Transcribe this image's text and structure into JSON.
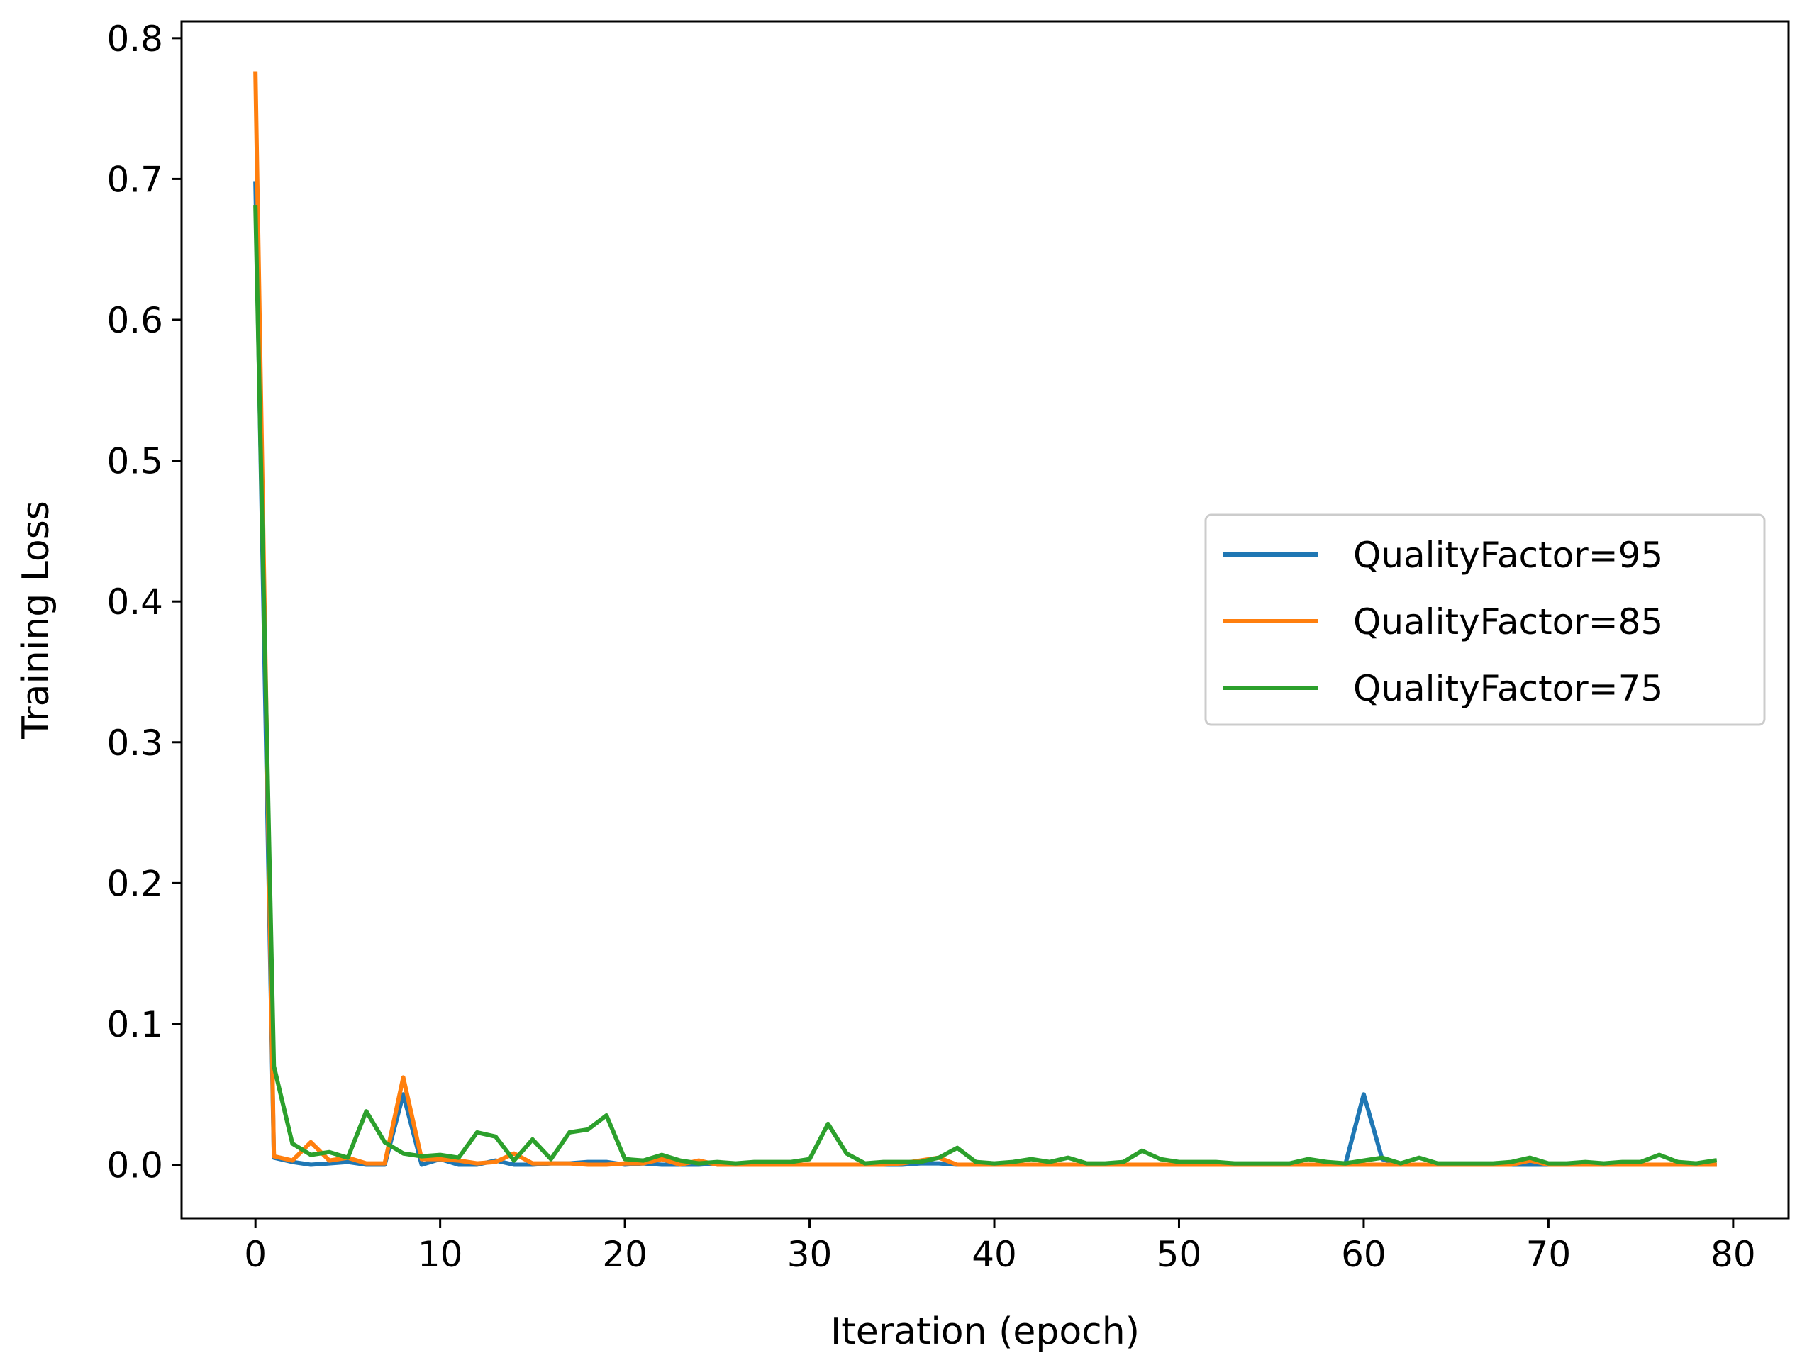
{
  "chart_data": {
    "type": "line",
    "title": "",
    "xlabel": "Iteration (epoch)",
    "ylabel": "Training Loss",
    "xlim": [
      -4,
      83
    ],
    "ylim": [
      -0.038,
      0.812
    ],
    "xticks": [
      0,
      10,
      20,
      30,
      40,
      50,
      60,
      70,
      80
    ],
    "yticks": [
      0.0,
      0.1,
      0.2,
      0.3,
      0.4,
      0.5,
      0.6,
      0.7,
      0.8
    ],
    "xtick_labels": [
      "0",
      "10",
      "20",
      "30",
      "40",
      "50",
      "60",
      "70",
      "80"
    ],
    "ytick_labels": [
      "0.0",
      "0.1",
      "0.2",
      "0.3",
      "0.4",
      "0.5",
      "0.6",
      "0.7",
      "0.8"
    ],
    "grid": false,
    "legend_position": "center-right",
    "x": [
      0,
      1,
      2,
      3,
      4,
      5,
      6,
      7,
      8,
      9,
      10,
      11,
      12,
      13,
      14,
      15,
      16,
      17,
      18,
      19,
      20,
      21,
      22,
      23,
      24,
      25,
      26,
      27,
      28,
      29,
      30,
      31,
      32,
      33,
      34,
      35,
      36,
      37,
      38,
      39,
      40,
      41,
      42,
      43,
      44,
      45,
      46,
      47,
      48,
      49,
      50,
      51,
      52,
      53,
      54,
      55,
      56,
      57,
      58,
      59,
      60,
      61,
      62,
      63,
      64,
      65,
      66,
      67,
      68,
      69,
      70,
      71,
      72,
      73,
      74,
      75,
      76,
      77,
      78,
      79
    ],
    "series": [
      {
        "name": "QualityFactor=95",
        "color": "#1f77b4",
        "values": [
          0.697,
          0.005,
          0.002,
          0.0,
          0.001,
          0.002,
          0.0,
          0.0,
          0.05,
          0.0,
          0.004,
          0.0,
          0.0,
          0.003,
          0.0,
          0.0,
          0.001,
          0.001,
          0.002,
          0.002,
          0.0,
          0.001,
          0.0,
          0.0,
          0.0,
          0.001,
          0.0,
          0.0,
          0.0,
          0.0,
          0.0,
          0.0,
          0.0,
          0.0,
          0.0,
          0.0,
          0.001,
          0.001,
          0.0,
          0.0,
          0.0,
          0.0,
          0.0,
          0.0,
          0.0,
          0.0,
          0.0,
          0.0,
          0.0,
          0.0,
          0.0,
          0.0,
          0.0,
          0.0,
          0.0,
          0.0,
          0.0,
          0.0,
          0.0,
          0.0,
          0.05,
          0.004,
          0.0,
          0.0,
          0.0,
          0.0,
          0.0,
          0.0,
          0.0,
          0.0,
          0.0,
          0.0,
          0.0,
          0.0,
          0.0,
          0.0,
          0.0,
          0.0,
          0.0,
          0.0
        ]
      },
      {
        "name": "QualityFactor=85",
        "color": "#ff7f0e",
        "values": [
          0.775,
          0.006,
          0.003,
          0.016,
          0.003,
          0.005,
          0.001,
          0.001,
          0.062,
          0.004,
          0.004,
          0.003,
          0.001,
          0.002,
          0.008,
          0.001,
          0.001,
          0.001,
          0.0,
          0.0,
          0.001,
          0.001,
          0.004,
          0.0,
          0.003,
          0.0,
          0.0,
          0.0,
          0.0,
          0.0,
          0.0,
          0.0,
          0.0,
          0.0,
          0.0,
          0.001,
          0.003,
          0.005,
          0.0,
          0.0,
          0.0,
          0.0,
          0.0,
          0.0,
          0.0,
          0.0,
          0.0,
          0.0,
          0.0,
          0.0,
          0.0,
          0.0,
          0.0,
          0.0,
          0.0,
          0.0,
          0.0,
          0.0,
          0.0,
          0.0,
          0.0,
          0.0,
          0.0,
          0.0,
          0.0,
          0.0,
          0.0,
          0.0,
          0.0,
          0.003,
          0.0,
          0.0,
          0.0,
          0.0,
          0.0,
          0.0,
          0.0,
          0.0,
          0.0,
          0.0
        ]
      },
      {
        "name": "QualityFactor=75",
        "color": "#2ca02c",
        "values": [
          0.68,
          0.07,
          0.015,
          0.007,
          0.009,
          0.005,
          0.038,
          0.016,
          0.008,
          0.006,
          0.007,
          0.005,
          0.023,
          0.02,
          0.003,
          0.018,
          0.004,
          0.023,
          0.025,
          0.035,
          0.004,
          0.003,
          0.007,
          0.003,
          0.001,
          0.002,
          0.001,
          0.002,
          0.002,
          0.002,
          0.004,
          0.029,
          0.008,
          0.001,
          0.002,
          0.002,
          0.002,
          0.005,
          0.012,
          0.002,
          0.001,
          0.002,
          0.004,
          0.002,
          0.005,
          0.001,
          0.001,
          0.002,
          0.01,
          0.004,
          0.002,
          0.002,
          0.002,
          0.001,
          0.001,
          0.001,
          0.001,
          0.004,
          0.002,
          0.001,
          0.003,
          0.005,
          0.001,
          0.005,
          0.001,
          0.001,
          0.001,
          0.001,
          0.002,
          0.005,
          0.001,
          0.001,
          0.002,
          0.001,
          0.002,
          0.002,
          0.007,
          0.002,
          0.001,
          0.003
        ]
      }
    ]
  }
}
